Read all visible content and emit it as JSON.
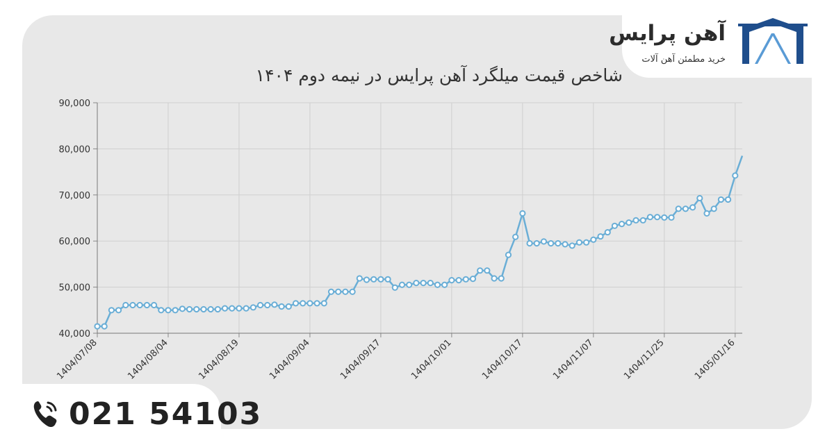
{
  "brand": {
    "name": "آهن پرایس",
    "tagline": "خرید مطمئن آهن آلات",
    "logo_icon": "ahan-price-logo-icon",
    "colors": {
      "primary": "#1f4e8c",
      "secondary": "#5a9bd5"
    }
  },
  "contact": {
    "phone_icon": "phone-icon",
    "phone": "021 54103"
  },
  "chart_data": {
    "type": "line",
    "title": "شاخص قیمت میلگرد آهن پرایس در نیمه دوم ۱۴۰۴",
    "xlabel": "",
    "ylabel": "",
    "ylim": [
      40000,
      90000
    ],
    "yticks": [
      40000,
      50000,
      60000,
      70000,
      80000,
      90000
    ],
    "ytick_labels": [
      "40,000",
      "50,000",
      "60,000",
      "70,000",
      "80,000",
      "90,000"
    ],
    "xtick_labels": [
      "1404/07/08",
      "1404/08/04",
      "1404/08/19",
      "1404/09/04",
      "1404/09/17",
      "1404/10/01",
      "1404/10/17",
      "1404/11/07",
      "1404/11/25",
      "1405/01/16"
    ],
    "grid": true,
    "line_color": "#6aaed6",
    "series": [
      {
        "values": [
          41500,
          41500,
          45000,
          45000,
          46100,
          46100,
          46100,
          46100,
          46100,
          45000,
          45000,
          45000,
          45300,
          45200,
          45200,
          45200,
          45200,
          45200,
          45400,
          45400,
          45400,
          45400,
          45600,
          46100,
          46100,
          46200,
          45800,
          45800,
          46500,
          46500,
          46500,
          46500,
          46500,
          49000,
          49000,
          49000,
          49000,
          51900,
          51600,
          51700,
          51700,
          51700,
          49900,
          50500,
          50500,
          50900,
          50900,
          50900,
          50500,
          50500,
          51500,
          51500,
          51700,
          51800,
          53600,
          53600,
          51900,
          51900,
          57000,
          60900,
          66000,
          59500,
          59500,
          59900,
          59500,
          59500,
          59300,
          59000,
          59700,
          59700,
          60300,
          61000,
          61900,
          63300,
          63700,
          64000,
          64500,
          64500,
          65200,
          65200,
          65100,
          65100,
          67000,
          67000,
          67300,
          69300,
          66000,
          67000,
          69000,
          69000,
          74200,
          78500
        ]
      }
    ]
  }
}
